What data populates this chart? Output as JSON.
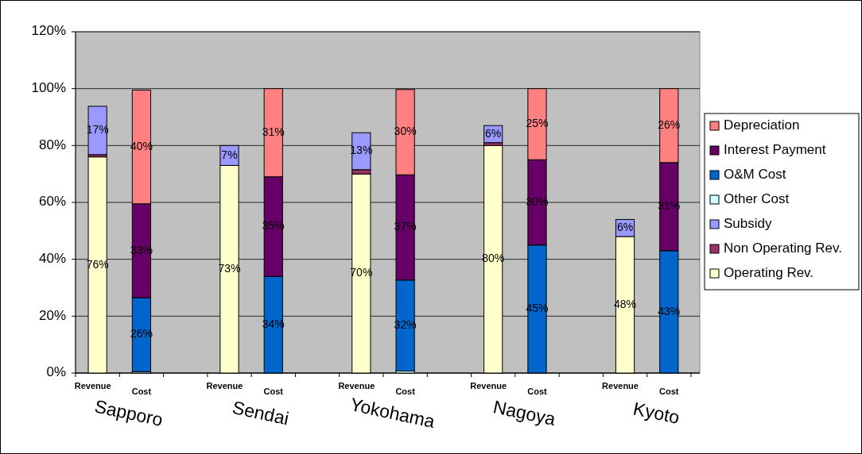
{
  "chart_data": {
    "type": "bar",
    "stacked": true,
    "categories": [
      "Revenue",
      "Cost",
      null,
      "Revenue",
      "Cost",
      null,
      "Revenue",
      "Cost",
      null,
      "Revenue",
      "Cost",
      null,
      "Revenue",
      "Cost"
    ],
    "annotations": [
      "Sapporo",
      "Sendai",
      "Yokohama",
      "Nagoya",
      "Kyoto"
    ],
    "ylim": [
      0,
      120
    ],
    "yticks": [
      {
        "value": 0,
        "label": "0%"
      },
      {
        "value": 20,
        "label": "20%"
      },
      {
        "value": 40,
        "label": "40%"
      },
      {
        "value": 60,
        "label": "60%"
      },
      {
        "value": 80,
        "label": "80%"
      },
      {
        "value": 100,
        "label": "100%"
      },
      {
        "value": 120,
        "label": "120%"
      }
    ],
    "grid": "y",
    "legend": "right",
    "series": [
      {
        "name": "Operating Rev.",
        "color": "#ffffcc",
        "values": [
          76,
          null,
          null,
          73,
          null,
          null,
          70,
          null,
          null,
          80,
          null,
          null,
          48,
          null
        ],
        "value_labels": [
          "76%",
          null,
          null,
          "73%",
          null,
          null,
          "70%",
          null,
          null,
          "80%",
          null,
          null,
          "48%",
          null
        ]
      },
      {
        "name": "Non Operating Rev.",
        "color": "#993366",
        "values": [
          0.8,
          null,
          null,
          null,
          null,
          null,
          1.5,
          null,
          null,
          1,
          null,
          null,
          null,
          null
        ]
      },
      {
        "name": "Subsidy",
        "color": "#9999ff",
        "values": [
          17,
          null,
          null,
          7,
          null,
          null,
          13,
          null,
          null,
          6,
          null,
          null,
          6,
          null
        ],
        "value_labels": [
          "17%",
          null,
          null,
          "7%",
          null,
          null,
          "13%",
          null,
          null,
          "6%",
          null,
          null,
          "6%",
          null
        ]
      },
      {
        "name": "Other Cost",
        "color": "#ccffff",
        "values": [
          null,
          0.5,
          null,
          null,
          null,
          null,
          null,
          0.7,
          null,
          null,
          null,
          null,
          null,
          null
        ]
      },
      {
        "name": "O&M Cost",
        "color": "#0066cc",
        "values": [
          null,
          26,
          null,
          null,
          34,
          null,
          null,
          32,
          null,
          null,
          45,
          null,
          null,
          43
        ],
        "value_labels": [
          null,
          "26%",
          null,
          null,
          "34%",
          null,
          null,
          "32%",
          null,
          null,
          "45%",
          null,
          null,
          "43%"
        ]
      },
      {
        "name": "Interest Payment",
        "color": "#660066",
        "values": [
          null,
          33,
          null,
          null,
          35,
          null,
          null,
          37,
          null,
          null,
          30,
          null,
          null,
          31
        ],
        "value_labels": [
          null,
          "33%",
          null,
          null,
          "35%",
          null,
          null,
          "37%",
          null,
          null,
          "30%",
          null,
          null,
          "31%"
        ]
      },
      {
        "name": "Depreciation",
        "color": "#ff8080",
        "values": [
          null,
          40,
          null,
          null,
          31,
          null,
          null,
          30,
          null,
          null,
          25,
          null,
          null,
          26
        ],
        "value_labels": [
          null,
          "40%",
          null,
          null,
          "31%",
          null,
          null,
          "30%",
          null,
          null,
          "25%",
          null,
          null,
          "26%"
        ]
      }
    ]
  }
}
